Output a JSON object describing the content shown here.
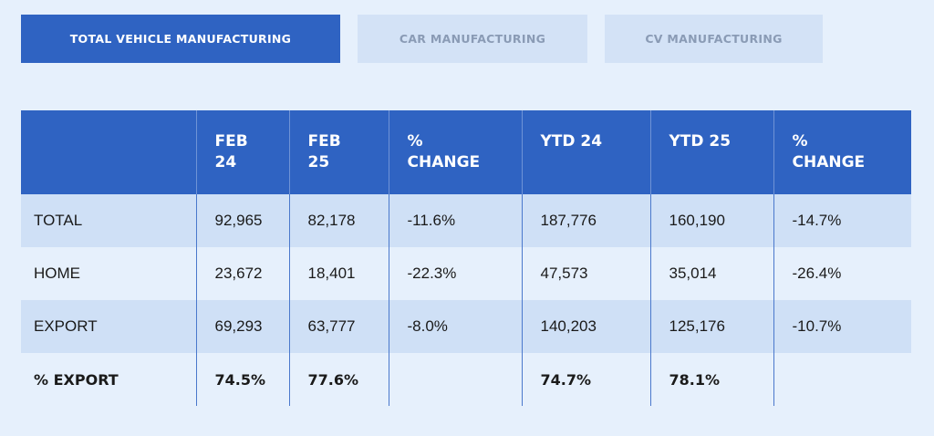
{
  "tabs": [
    {
      "label": "TOTAL VEHICLE MANUFACTURING",
      "active": true
    },
    {
      "label": "CAR MANUFACTURING",
      "active": false
    },
    {
      "label": "CV MANUFACTURING",
      "active": false
    }
  ],
  "table": {
    "headers": [
      [
        "",
        ""
      ],
      [
        "FEB",
        "24"
      ],
      [
        "FEB",
        "25"
      ],
      [
        "%",
        "CHANGE"
      ],
      [
        "YTD 24",
        ""
      ],
      [
        "YTD 25",
        ""
      ],
      [
        "%",
        "CHANGE"
      ]
    ],
    "rows": [
      {
        "label": "TOTAL",
        "values": [
          "92,965",
          "82,178",
          "-11.6%",
          "187,776",
          "160,190",
          "-14.7%"
        ]
      },
      {
        "label": "HOME",
        "values": [
          "23,672",
          "18,401",
          "-22.3%",
          "47,573",
          "35,014",
          "-26.4%"
        ]
      },
      {
        "label": "EXPORT",
        "values": [
          "69,293",
          "63,777",
          "-8.0%",
          "140,203",
          "125,176",
          "-10.7%"
        ]
      },
      {
        "label": "% EXPORT",
        "values": [
          "74.5%",
          "77.6%",
          "",
          "74.7%",
          "78.1%",
          ""
        ]
      }
    ]
  },
  "colors": {
    "accent": "#2f63c2",
    "row_shade": "#cfe0f6",
    "background": "#e6f0fc",
    "inactive_tab": "#d3e2f6",
    "inactive_tab_text": "#8a9bb5"
  }
}
